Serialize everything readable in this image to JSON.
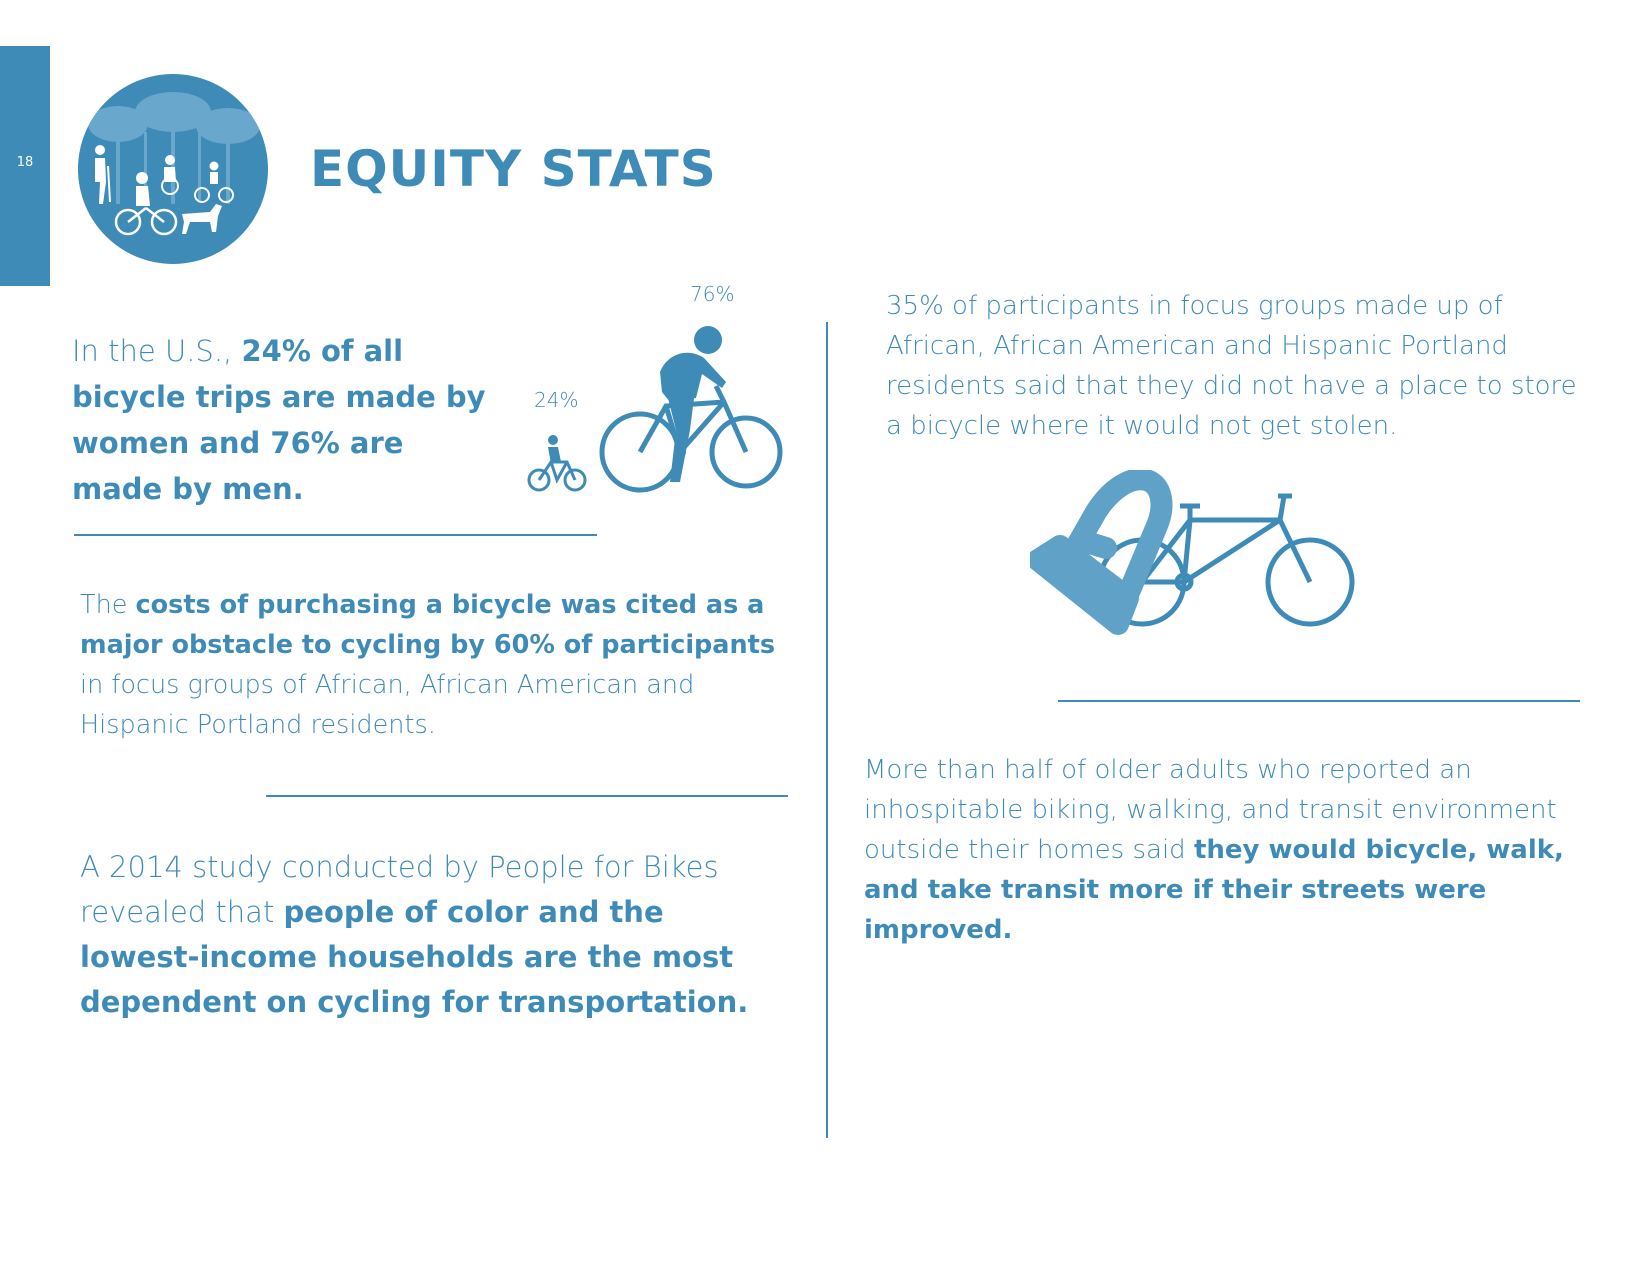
{
  "page": {
    "number": "18"
  },
  "header": {
    "title": "EQUITY STATS"
  },
  "colors": {
    "accent": "#3e8bb8",
    "icon_light": "#5fa1c7"
  },
  "badge": {
    "icon": "people-cycling-walking-badge-icon"
  },
  "gender_stat": {
    "prefix": "In the U.S., ",
    "bold": "24% of all bicycle trips are made by women and 76% are made by men.",
    "women_pct_label": "24%",
    "men_pct_label": "76%",
    "women_value": 24,
    "men_value": 76
  },
  "cost_stat": {
    "prefix": "The ",
    "bold": "costs of purchasing a bicycle was cited as a major obstacle to cycling by 60% of participants",
    "suffix": " in focus groups of African, African American and Hispanic Portland residents."
  },
  "study_stat": {
    "prefix": "A 2014 study conducted by People for Bikes revealed that ",
    "bold": "people of color and the lowest-income households are the most dependent on cycling for transportation."
  },
  "storage_stat": {
    "text": "35% of participants in focus groups made up of African, African American and Hispanic Portland residents said that they did not have a place to store a bicycle where it would not get stolen."
  },
  "older_adults_stat": {
    "prefix": "More than half of older adults who reported an inhospitable biking, walking, and transit environment outside their homes said ",
    "bold": "they would bicycle, walk, and take transit more if their streets were improved."
  }
}
